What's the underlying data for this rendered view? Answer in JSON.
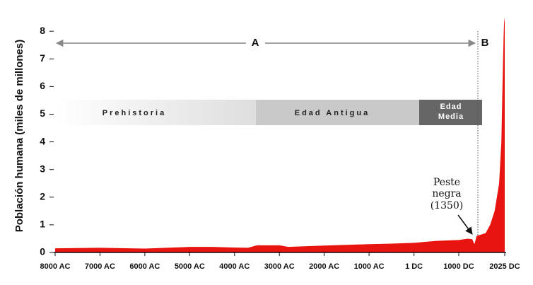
{
  "chart_data": {
    "type": "area",
    "y_label": "Población humana (miles de millones)",
    "x": [
      -8000,
      -7000,
      -6000,
      -5000,
      -4500,
      -4000,
      -3700,
      -3500,
      -3000,
      -2800,
      -2500,
      -2000,
      -1000,
      -500,
      1,
      500,
      1000,
      1200,
      1300,
      1350,
      1400,
      1500,
      1600,
      1700,
      1800,
      1900,
      1950,
      1975,
      2000,
      2010,
      2025
    ],
    "values": [
      0.15,
      0.17,
      0.14,
      0.2,
      0.2,
      0.18,
      0.17,
      0.26,
      0.26,
      0.2,
      0.22,
      0.25,
      0.3,
      0.32,
      0.35,
      0.42,
      0.45,
      0.5,
      0.48,
      0.3,
      0.6,
      0.65,
      0.7,
      1.0,
      1.5,
      2.5,
      4.0,
      6.0,
      7.8,
      8.3,
      8.5
    ],
    "color": "#e8140f",
    "xlim": [
      -8000,
      2025
    ],
    "ylim": [
      0,
      8.5
    ],
    "xticks": [
      {
        "value": -8000,
        "label": "8000 AC"
      },
      {
        "value": -7000,
        "label": "7000 AC"
      },
      {
        "value": -6000,
        "label": "6000 AC"
      },
      {
        "value": -5000,
        "label": "5000 AC"
      },
      {
        "value": -4000,
        "label": "4000 AC"
      },
      {
        "value": -3000,
        "label": "3000 AC"
      },
      {
        "value": -2000,
        "label": "2000 AC"
      },
      {
        "value": -1000,
        "label": "1000 AC"
      },
      {
        "value": 1,
        "label": "1 DC"
      },
      {
        "value": 1000,
        "label": "1000 DC"
      },
      {
        "value": 2025,
        "label": "2025 DC"
      }
    ],
    "yticks": [
      0,
      1,
      2,
      3,
      4,
      5,
      6,
      7,
      8
    ],
    "annotations": {
      "a": "A",
      "b": "B",
      "periods": [
        "Prehistoria",
        "Edad Antigua",
        [
          "Edad",
          "Media"
        ]
      ],
      "peste": [
        "Peste",
        "negra",
        "(1350)"
      ]
    }
  }
}
